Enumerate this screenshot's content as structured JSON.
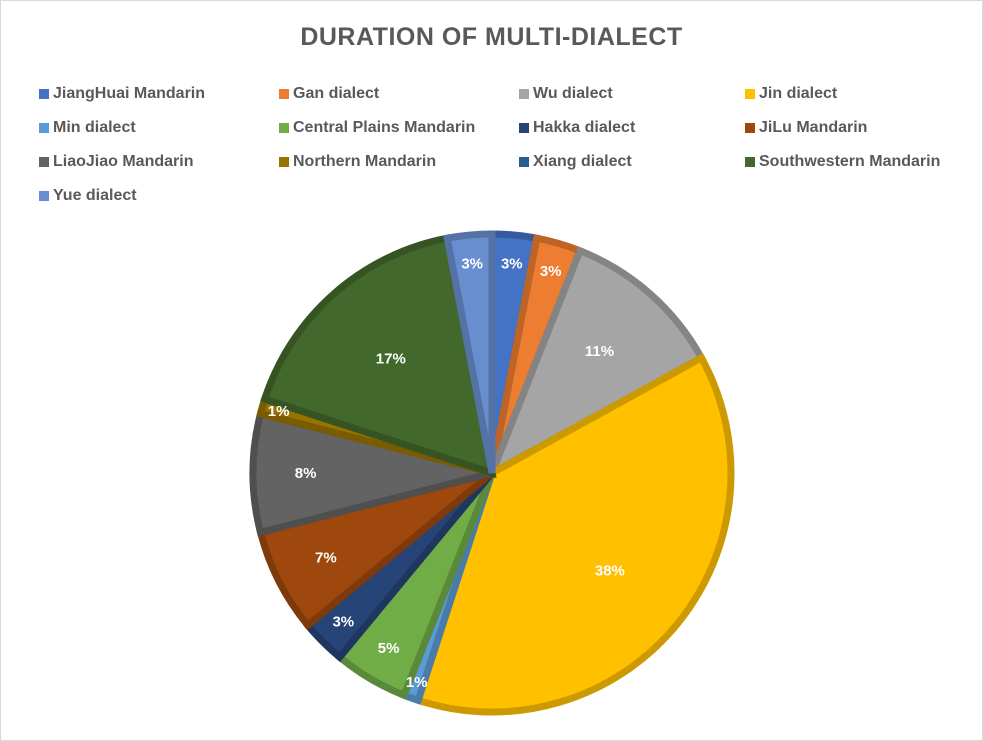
{
  "chart_data": {
    "type": "pie",
    "title": "DURATION OF MULTI-DIALECT",
    "legend_position": "top",
    "slices": [
      {
        "name": "JiangHuai Mandarin",
        "value": 3,
        "label": "3%",
        "color": "#4472c4"
      },
      {
        "name": "Gan dialect",
        "value": 3,
        "label": "3%",
        "color": "#ed7d31"
      },
      {
        "name": "Wu dialect",
        "value": 11,
        "label": "11%",
        "color": "#a5a5a5"
      },
      {
        "name": "Jin dialect",
        "value": 38,
        "label": "38%",
        "color": "#ffc000"
      },
      {
        "name": "Min dialect",
        "value": 1,
        "label": "1%",
        "color": "#5b9bd5"
      },
      {
        "name": "Central Plains Mandarin",
        "value": 5,
        "label": "5%",
        "color": "#70ad47"
      },
      {
        "name": "Hakka dialect",
        "value": 3,
        "label": "3%",
        "color": "#264478"
      },
      {
        "name": "JiLu Mandarin",
        "value": 7,
        "label": "7%",
        "color": "#9e480e"
      },
      {
        "name": "LiaoJiao Mandarin",
        "value": 8,
        "label": "8%",
        "color": "#636363"
      },
      {
        "name": "Northern Mandarin",
        "value": 1,
        "label": "1%",
        "color": "#997300"
      },
      {
        "name": "Xiang dialect",
        "value": 0,
        "label": "",
        "color": "#255e91"
      },
      {
        "name": "Southwestern Mandarin",
        "value": 17,
        "label": "17%",
        "color": "#43682b"
      },
      {
        "name": "Yue dialect",
        "value": 3,
        "label": "3%",
        "color": "#698ed0"
      }
    ]
  }
}
